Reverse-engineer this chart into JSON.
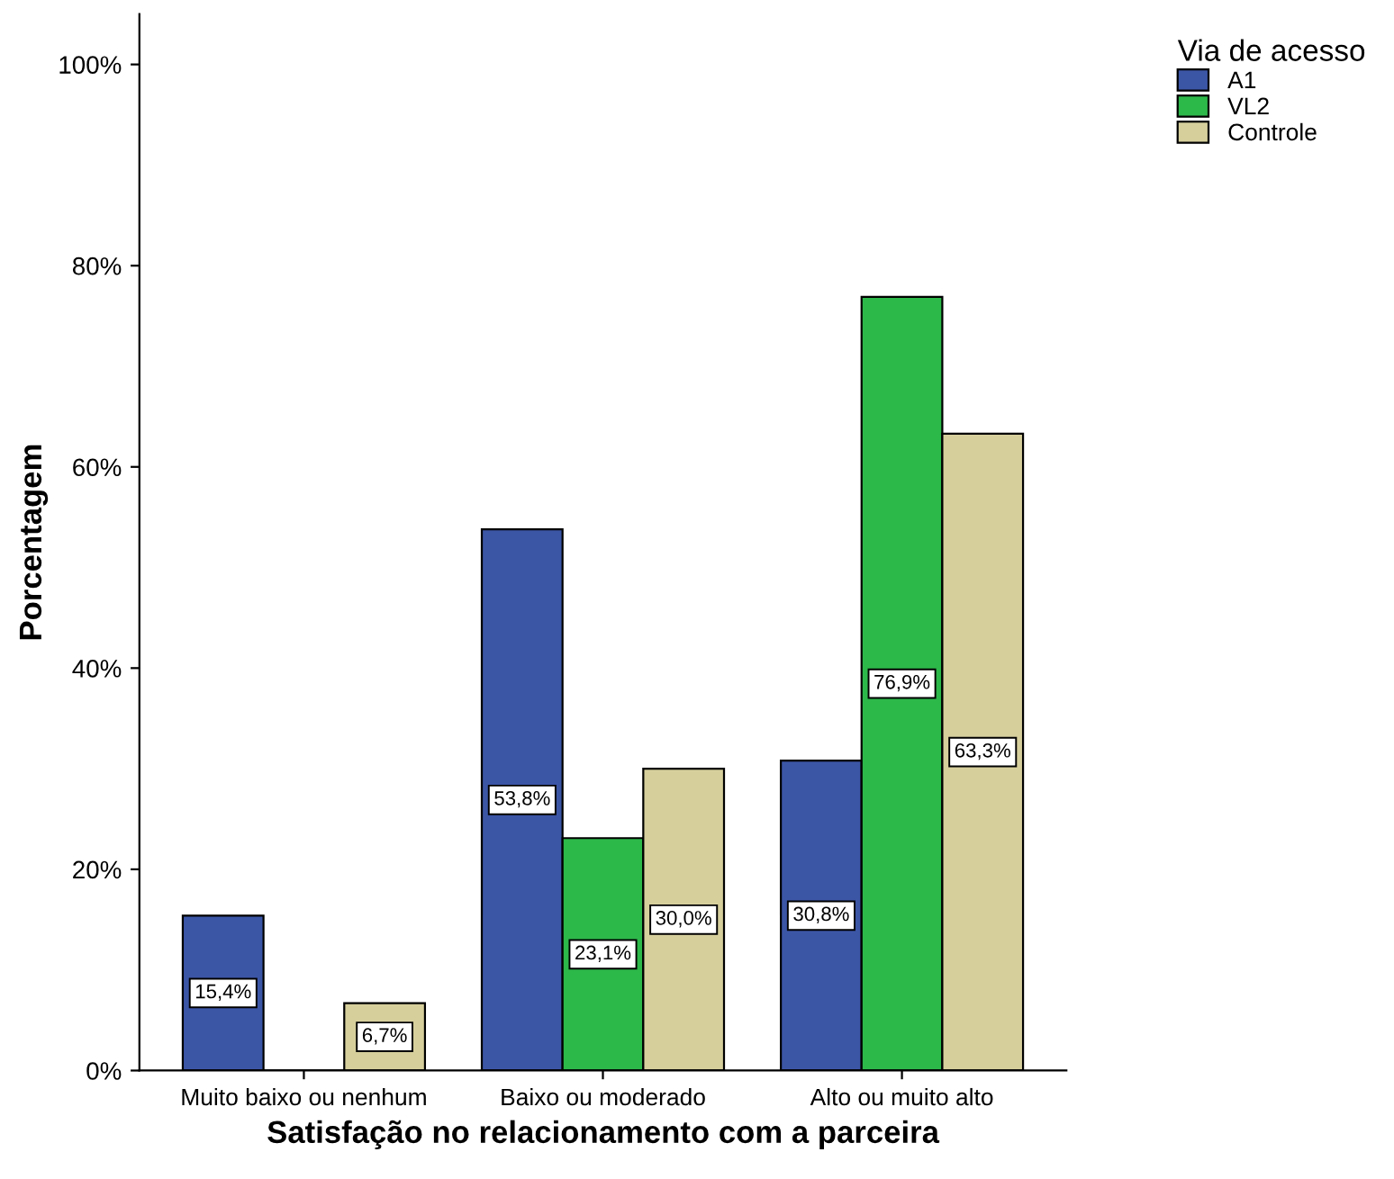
{
  "chart_data": {
    "type": "bar",
    "xlabel": "Satisfação no relacionamento com a parceira",
    "ylabel": "Porcentagem",
    "legend_title": "Via de acesso",
    "categories": [
      "Muito baixo ou nenhum",
      "Baixo ou moderado",
      "Alto ou muito alto"
    ],
    "series": [
      {
        "name": "A1",
        "color": "#3c56a6",
        "values": [
          15.4,
          53.8,
          30.8
        ],
        "value_labels": [
          "15,4%",
          "53,8%",
          "30,8%"
        ]
      },
      {
        "name": "VL2",
        "color": "#2db84a",
        "values": [
          0,
          23.1,
          76.9
        ],
        "value_labels": [
          null,
          "23,1%",
          "76,9%"
        ]
      },
      {
        "name": "Controle",
        "color": "#d6cf9c",
        "values": [
          6.7,
          30.0,
          63.3
        ],
        "value_labels": [
          "6,7%",
          "30,0%",
          "63,3%"
        ]
      }
    ],
    "ylim": [
      0,
      105
    ],
    "yticks": [
      {
        "value": 0,
        "label": "0%"
      },
      {
        "value": 20,
        "label": "20%"
      },
      {
        "value": 40,
        "label": "40%"
      },
      {
        "value": 60,
        "label": "60%"
      },
      {
        "value": 80,
        "label": "80%"
      },
      {
        "value": 100,
        "label": "100%"
      }
    ],
    "grid": false,
    "legend": "top right"
  }
}
